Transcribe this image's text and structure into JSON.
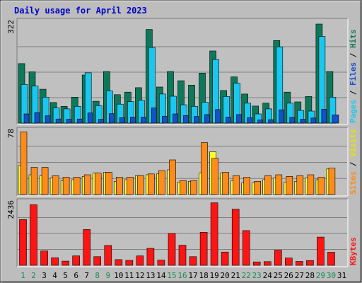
{
  "chart_data": {
    "type": "bar",
    "title": "Daily usage for April 2023",
    "categories": [
      "1",
      "2",
      "3",
      "4",
      "5",
      "6",
      "7",
      "8",
      "9",
      "10",
      "11",
      "12",
      "13",
      "14",
      "15",
      "16",
      "17",
      "18",
      "19",
      "20",
      "21",
      "22",
      "23",
      "24",
      "25",
      "26",
      "27",
      "28",
      "29",
      "30",
      "31"
    ],
    "weekend_days": [
      "1",
      "2",
      "8",
      "9",
      "15",
      "16",
      "22",
      "23",
      "29",
      "30"
    ],
    "panels": [
      {
        "id": "hits",
        "ymax_label": "322",
        "ylim": [
          0,
          322
        ],
        "right_labels": [
          "Pages",
          "Files",
          "Hits"
        ],
        "series": [
          {
            "name": "Hits",
            "values": [
              188,
              162,
              107,
              65,
              53,
              82,
              152,
              69,
              163,
              90,
              98,
              112,
              296,
              114,
              163,
              134,
              120,
              158,
              228,
              103,
              146,
              92,
              54,
              63,
              261,
              98,
              67,
              84,
              313,
              163,
              0
            ]
          },
          {
            "name": "Files",
            "values": [
              122,
              117,
              82,
              48,
              45,
              53,
              159,
              55,
              102,
              60,
              68,
              72,
              239,
              92,
              85,
              58,
              53,
              66,
              201,
              84,
              126,
              63,
              29,
              45,
              241,
              63,
              40,
              38,
              274,
              82,
              0
            ]
          },
          {
            "name": "Pages",
            "values": [
              29,
              33,
              23,
              13,
              12,
              13,
              32,
              12,
              30,
              17,
              19,
              19,
              48,
              22,
              29,
              24,
              21,
              27,
              43,
              19,
              27,
              17,
              10,
              11,
              42,
              18,
              12,
              16,
              44,
              26,
              0
            ]
          }
        ]
      },
      {
        "id": "visits",
        "ymax_label": "78",
        "ylim": [
          0,
          78
        ],
        "right_labels": [
          "Sites",
          "Visits"
        ],
        "series": [
          {
            "name": "Visits",
            "values": [
              35,
              24,
              23,
              20,
              17,
              18,
              22,
              26,
              27,
              16,
              18,
              23,
              24,
              25,
              30,
              15,
              16,
              26,
              52,
              26,
              17,
              14,
              14,
              18,
              20,
              15,
              16,
              20,
              18,
              31,
              0
            ]
          },
          {
            "name": "Sites",
            "values": [
              76,
              33,
              33,
              23,
              21,
              21,
              24,
              26,
              27,
              21,
              21,
              23,
              25,
              29,
              42,
              17,
              17,
              63,
              44,
              27,
              23,
              21,
              16,
              23,
              24,
              22,
              23,
              24,
              21,
              32,
              0
            ]
          }
        ]
      },
      {
        "id": "kbytes",
        "ymax_label": "2436",
        "ylim": [
          0,
          2436
        ],
        "right_labels": [
          "KBytes"
        ],
        "series": [
          {
            "name": "KBytes",
            "values": [
              1750,
              2320,
              550,
              290,
              160,
              360,
              1370,
              330,
              760,
              220,
              190,
              360,
              650,
              200,
              1220,
              770,
              330,
              1260,
              2390,
              510,
              2150,
              1330,
              130,
              140,
              580,
              280,
              150,
              180,
              1080,
              500,
              0
            ]
          }
        ]
      }
    ]
  },
  "colors": {
    "frame_bg": "#bdbdbd",
    "panel_bg": "#c0c0c0",
    "grid": "#808080",
    "title": "#0000cc",
    "hits": "#0c7a5a",
    "files": "#19c8f0",
    "pages": "#1450c8",
    "visits": "#ffff33",
    "sites": "#ff8c1a",
    "kbytes": "#ff1414",
    "label_hits": "#1a7a5a",
    "label_files": "#1450c8",
    "label_pages": "#19c8f0",
    "label_sites": "#ff8c1a",
    "label_visits": "#e6e600",
    "label_kbytes": "#ff1414",
    "day_normal": "#000000",
    "day_weekend": "#1a8a5a"
  }
}
